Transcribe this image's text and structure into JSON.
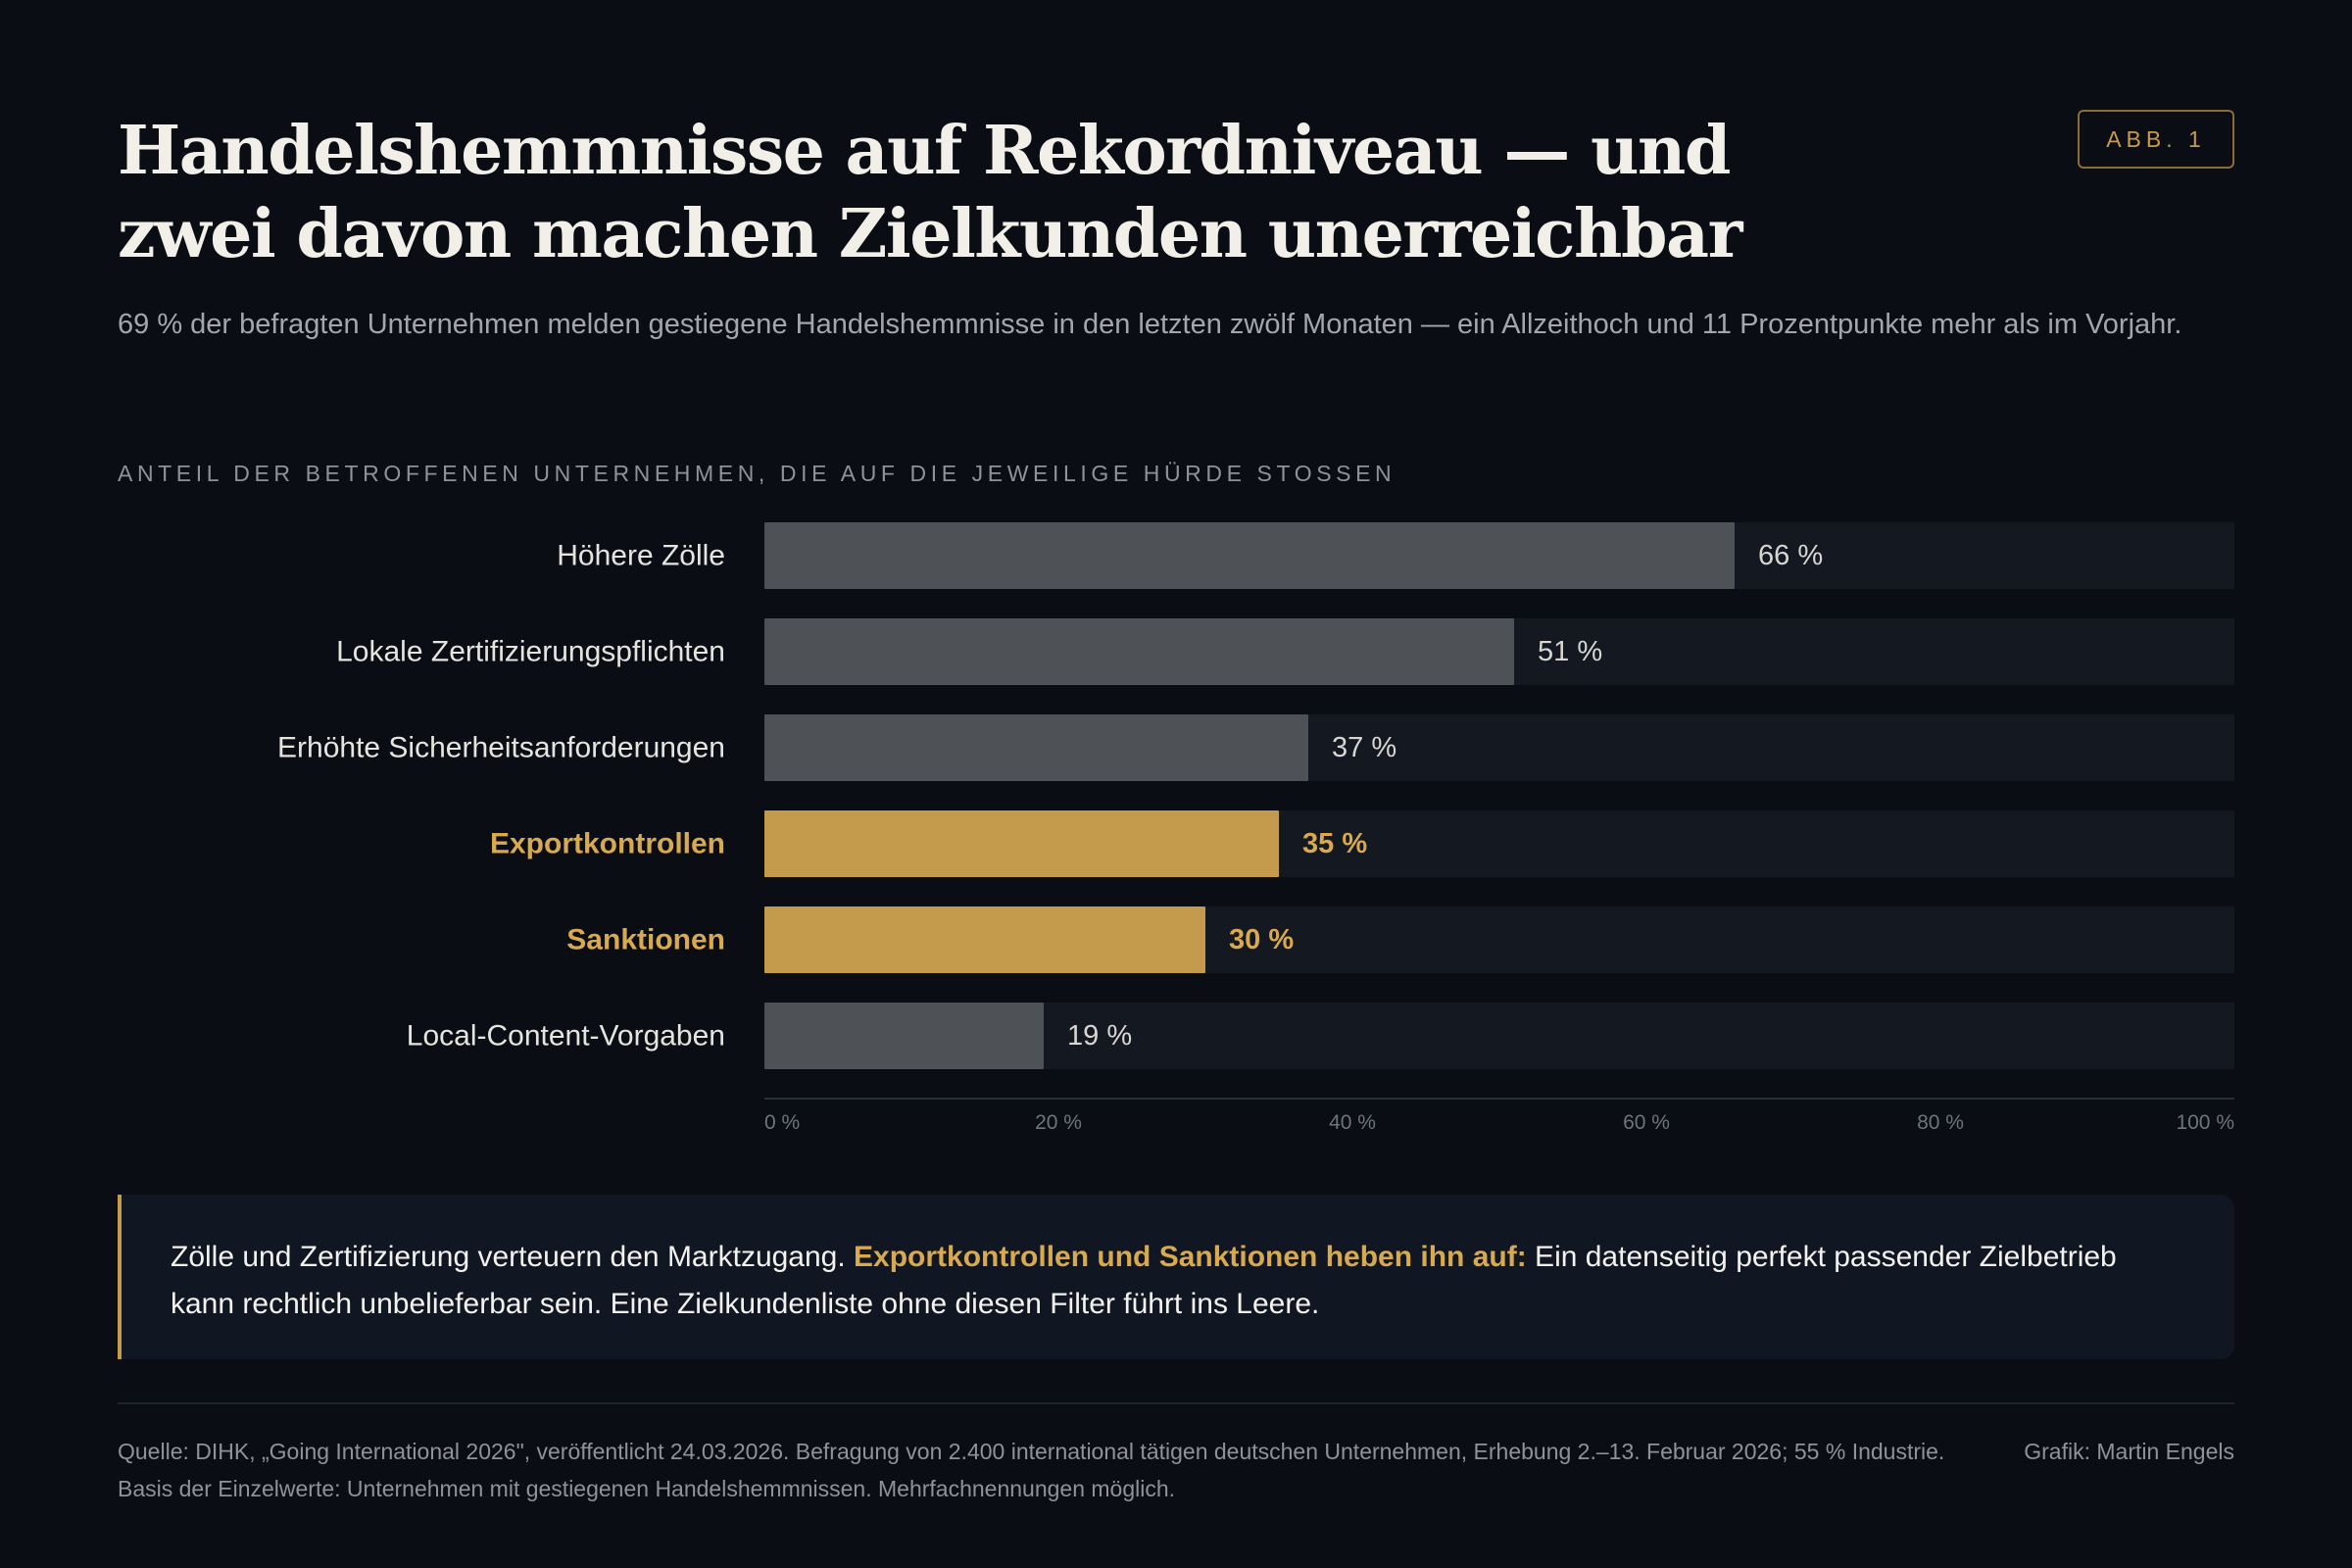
{
  "header": {
    "title": "Handelshemmnisse auf Rekordniveau — und zwei davon machen Zielkunden unerreichbar",
    "badge": "ABB. 1",
    "subtitle": "69 % der befragten Unternehmen melden gestiegene Handelshemmnisse in den letzten zwölf Monaten — ein Allzeithoch und 11 Prozentpunkte mehr als im Vorjahr."
  },
  "chart_data": {
    "type": "bar",
    "orientation": "horizontal",
    "title": "ANTEIL DER BETROFFENEN UNTERNEHMEN, DIE AUF DIE JEWEILIGE HÜRDE STOSSEN",
    "categories": [
      "Höhere Zölle",
      "Lokale Zertifizierungspflichten",
      "Erhöhte Sicherheitsanforderungen",
      "Exportkontrollen",
      "Sanktionen",
      "Local-Content-Vorgaben"
    ],
    "values": [
      66,
      51,
      37,
      35,
      30,
      19
    ],
    "value_labels": [
      "66 %",
      "51 %",
      "37 %",
      "35 %",
      "30 %",
      "19 %"
    ],
    "highlighted": [
      false,
      false,
      false,
      true,
      true,
      false
    ],
    "xlim": [
      0,
      100
    ],
    "x_ticks": [
      0,
      20,
      40,
      60,
      80,
      100
    ],
    "x_tick_labels": [
      "0 %",
      "20 %",
      "40 %",
      "60 %",
      "80 %",
      "100 %"
    ],
    "grid": false,
    "legend": "none",
    "colors": {
      "bar": "#4e5155",
      "highlight": "#c49a4c",
      "track": "#141820",
      "label": "#e6e4df",
      "value_label": "#d8d6d1",
      "highlight_text": "#d8a94e",
      "axis": "#2a3038",
      "tick": "#6f747a"
    }
  },
  "callout": {
    "lead": "Zölle und Zertifizierung verteuern den Marktzugang. ",
    "highlight": "Exportkontrollen und Sanktionen heben ihn auf:",
    "rest": " Ein datenseitig perfekt passender Zielbetrieb kann rechtlich unbelieferbar sein. Eine Zielkundenliste ohne diesen Filter führt ins Leere."
  },
  "footer": {
    "source": "Quelle: DIHK, „Going International 2026\", veröffentlicht 24.03.2026. Befragung von 2.400 international tätigen deutschen Unternehmen, Erhebung 2.–13. Februar 2026; 55 % Industrie. Basis der Einzelwerte: Unternehmen mit gestiegenen Handelshemmnissen. Mehrfachnennungen möglich.",
    "credit": "Grafik: Martin Engels"
  }
}
